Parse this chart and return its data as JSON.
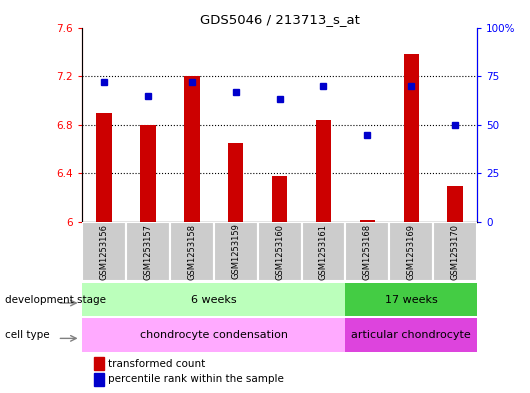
{
  "title": "GDS5046 / 213713_s_at",
  "samples": [
    "GSM1253156",
    "GSM1253157",
    "GSM1253158",
    "GSM1253159",
    "GSM1253160",
    "GSM1253161",
    "GSM1253168",
    "GSM1253169",
    "GSM1253170"
  ],
  "transformed_counts": [
    6.9,
    6.8,
    7.2,
    6.65,
    6.38,
    6.84,
    6.02,
    7.38,
    6.3
  ],
  "percentile_ranks": [
    72,
    65,
    72,
    67,
    63,
    70,
    45,
    70,
    50
  ],
  "ylim_left": [
    6.0,
    7.6
  ],
  "ylim_right": [
    0,
    100
  ],
  "yticks_left": [
    6.0,
    6.4,
    6.8,
    7.2,
    7.6
  ],
  "yticks_right": [
    0,
    25,
    50,
    75,
    100
  ],
  "ytick_labels_left": [
    "6",
    "6.4",
    "6.8",
    "7.2",
    "7.6"
  ],
  "ytick_labels_right": [
    "0",
    "25",
    "50",
    "75",
    "100%"
  ],
  "bar_color": "#cc0000",
  "dot_color": "#0000cc",
  "bar_base": 6.0,
  "n_group1": 6,
  "n_group2": 3,
  "dev_stage_label": "development stage",
  "dev_stage_group1": "6 weeks",
  "dev_stage_group2": "17 weeks",
  "cell_type_label": "cell type",
  "cell_type_group1": "chondrocyte condensation",
  "cell_type_group2": "articular chondrocyte",
  "dev_stage_color1": "#bbffbb",
  "dev_stage_color2": "#44cc44",
  "cell_type_color1": "#ffaaff",
  "cell_type_color2": "#dd44dd",
  "sample_bg": "#cccccc",
  "legend_bar_label": "transformed count",
  "legend_dot_label": "percentile rank within the sample"
}
